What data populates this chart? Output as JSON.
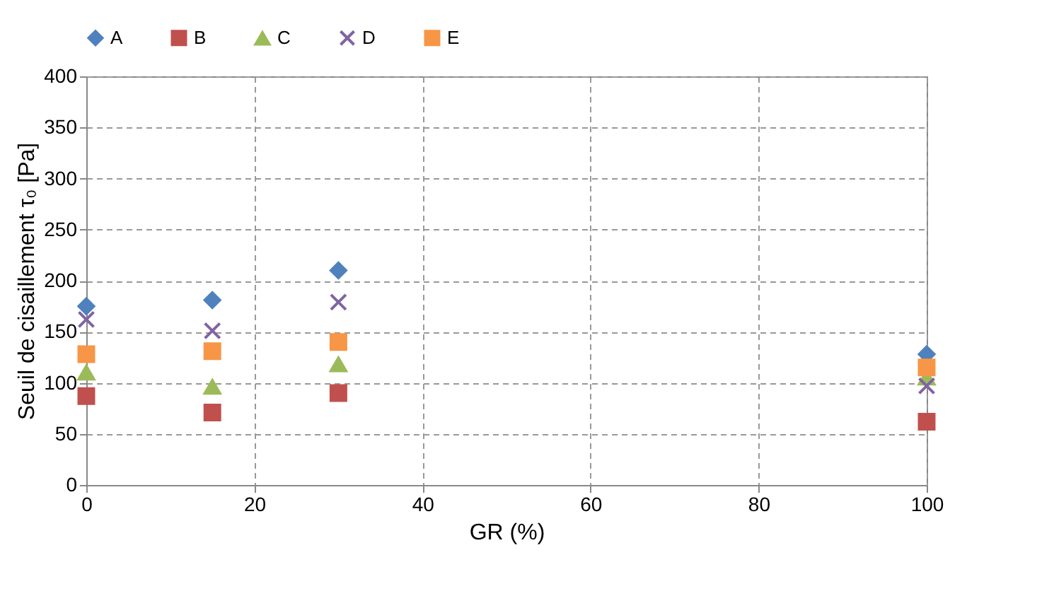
{
  "chart_data": {
    "type": "scatter",
    "xlabel": "GR (%)",
    "ylabel": "Seuil de cisaillement τ₀ [Pa]",
    "x": [
      0,
      15,
      30,
      100
    ],
    "series": [
      {
        "name": "A",
        "color": "#4f81bd",
        "marker": "diamond",
        "values": [
          175,
          181,
          210,
          128
        ]
      },
      {
        "name": "B",
        "color": "#c0504d",
        "marker": "square",
        "values": [
          87,
          71,
          90,
          62
        ]
      },
      {
        "name": "C",
        "color": "#9bbb59",
        "marker": "triangle",
        "values": [
          110,
          96,
          118,
          105
        ]
      },
      {
        "name": "D",
        "color": "#8064a2",
        "marker": "cross",
        "values": [
          162,
          151,
          179,
          97
        ]
      },
      {
        "name": "E",
        "color": "#f79646",
        "marker": "square",
        "values": [
          128,
          131,
          140,
          115
        ]
      }
    ],
    "xlim": [
      0,
      100
    ],
    "xticks": [
      0,
      20,
      40,
      60,
      80,
      100
    ],
    "ylim": [
      0,
      400
    ],
    "yticks": [
      0,
      50,
      100,
      150,
      200,
      250,
      300,
      350,
      400
    ],
    "grid": true,
    "legend": "top"
  }
}
